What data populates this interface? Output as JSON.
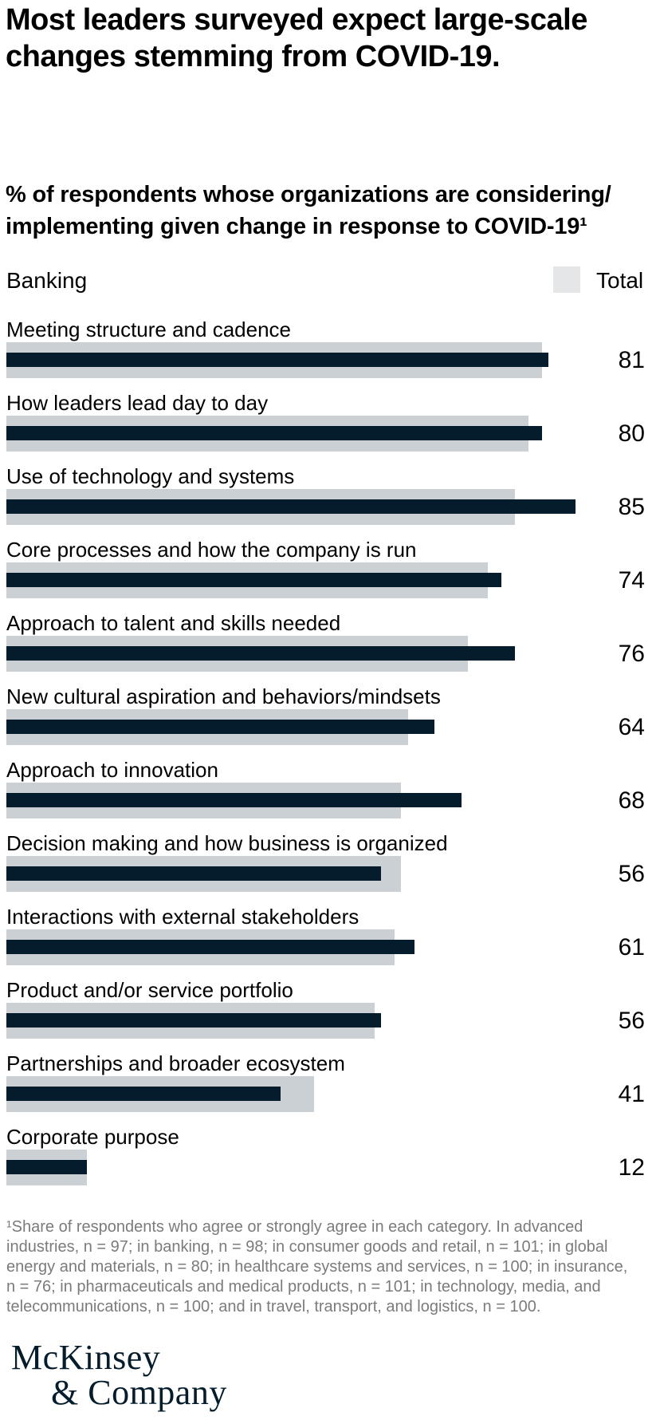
{
  "header": {
    "title_lines": [
      "Most leaders surveyed expect large-scale",
      "changes stemming from COVID-19."
    ]
  },
  "subtitle": {
    "lines": [
      "% of respondents whose organizations are considering/",
      "implementing given change in response to COVID-19¹"
    ]
  },
  "legend": {
    "sector_label": "Banking",
    "total_label": "Total",
    "total_swatch_color": "#e5e6e8"
  },
  "chart_data": {
    "type": "bar",
    "orientation": "horizontal",
    "title": "% of respondents whose organizations are considering/implementing given change in response to COVID-19",
    "categories": [
      "Meeting structure and cadence",
      "How leaders lead day to day",
      "Use of technology and systems",
      "Core processes and how the company is run",
      "Approach to talent and skills needed",
      "New cultural aspiration and behaviors/mindsets",
      "Approach to innovation",
      "Decision making and how business is organized",
      "Interactions with external stakeholders",
      "Product and/or service portfolio",
      "Partnerships and broader ecosystem",
      "Corporate purpose"
    ],
    "series": [
      {
        "name": "Banking",
        "color": "#051c2c",
        "values": [
          81,
          80,
          85,
          74,
          76,
          64,
          68,
          56,
          61,
          56,
          41,
          12
        ]
      },
      {
        "name": "Total",
        "color": "#cbd0d4",
        "values": [
          80,
          78,
          76,
          72,
          69,
          60,
          59,
          59,
          58,
          55,
          46,
          12
        ]
      }
    ],
    "value_labels_series": "Banking",
    "xlim": [
      0,
      100
    ],
    "grid": false,
    "legend_position": "top-right"
  },
  "footnote": {
    "lines": [
      "¹Share of respondents who agree or strongly agree in each category. In advanced",
      "industries, n = 97; in banking, n = 98; in consumer goods and retail, n = 101; in global",
      "energy and materials, n = 80; in healthcare systems and services, n = 100; in insurance,",
      "n = 76; in pharmaceuticals and medical products, n = 101; in technology, media, and",
      "telecommunications, n = 100; and in travel, transport, and logistics, n = 100."
    ]
  },
  "logo": {
    "line1": "McKinsey",
    "line2": "& Company"
  }
}
